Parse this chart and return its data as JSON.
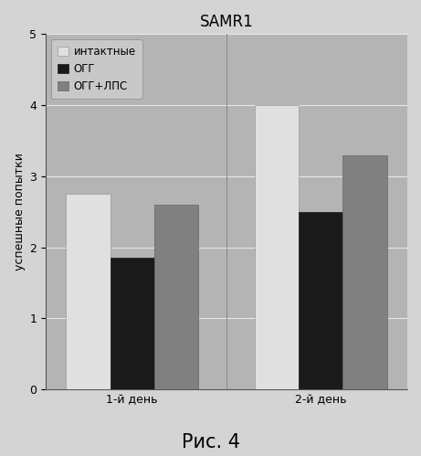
{
  "title": "SAMR1",
  "caption": "Рис. 4",
  "ylabel": "успешные попытки",
  "groups": [
    "1-й день",
    "2-й день"
  ],
  "series": [
    {
      "label": "интактные",
      "values": [
        2.75,
        4.0
      ],
      "color": "#e0e0e0",
      "edgecolor": "#999999"
    },
    {
      "label": "ОГГ",
      "values": [
        1.85,
        2.5
      ],
      "color": "#1a1a1a",
      "edgecolor": "#1a1a1a"
    },
    {
      "label": "ОГГ+ЛПС",
      "values": [
        2.6,
        3.3
      ],
      "color": "#808080",
      "edgecolor": "#666666"
    }
  ],
  "ylim": [
    0,
    5
  ],
  "yticks": [
    0,
    1,
    2,
    3,
    4,
    5
  ],
  "bar_width": 0.28,
  "group_centers": [
    0.55,
    1.75
  ],
  "xlim": [
    0.0,
    2.3
  ],
  "figure_bg": "#d4d4d4",
  "plot_bg": "#b4b4b4",
  "grid_color": "#e8e8e8",
  "title_fontsize": 12,
  "label_fontsize": 9,
  "tick_fontsize": 9,
  "legend_fontsize": 8.5,
  "caption_fontsize": 15
}
